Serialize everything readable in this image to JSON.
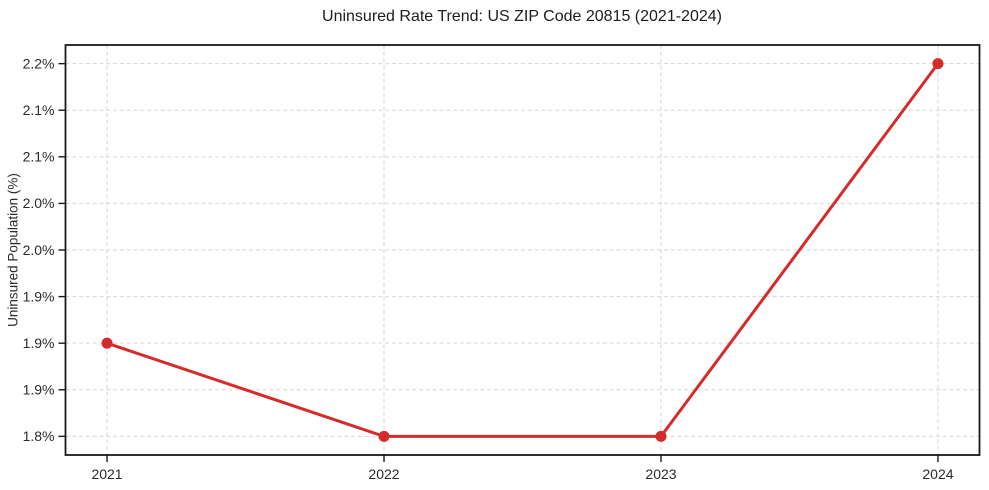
{
  "chart_data": {
    "type": "line",
    "title": "Uninsured Rate Trend: US ZIP Code 20815 (2021-2024)",
    "xlabel": "",
    "ylabel": "Uninsured Population (%)",
    "x": [
      2021,
      2022,
      2023,
      2024
    ],
    "values": [
      1.9,
      1.8,
      1.8,
      2.2
    ],
    "x_ticks": [
      {
        "value": 2021,
        "label": "2021"
      },
      {
        "value": 2022,
        "label": "2022"
      },
      {
        "value": 2023,
        "label": "2023"
      },
      {
        "value": 2024,
        "label": "2024"
      }
    ],
    "y_ticks": [
      {
        "value": 1.8,
        "label": "1.8%"
      },
      {
        "value": 1.85,
        "label": "1.9%"
      },
      {
        "value": 1.9,
        "label": "1.9%"
      },
      {
        "value": 1.95,
        "label": "1.9%"
      },
      {
        "value": 2.0,
        "label": "2.0%"
      },
      {
        "value": 2.05,
        "label": "2.0%"
      },
      {
        "value": 2.1,
        "label": "2.1%"
      },
      {
        "value": 2.15,
        "label": "2.1%"
      },
      {
        "value": 2.2,
        "label": "2.2%"
      }
    ],
    "xlim": [
      2020.85,
      2024.15
    ],
    "ylim": [
      1.78,
      2.22
    ],
    "grid": "dashed-both-axes",
    "legend": "none",
    "marker": "circle",
    "line_color": "#d62b2b",
    "grid_color": "#d6d6d6",
    "spine_color": "#1a1a1a",
    "text_color": "#2b2b2b"
  }
}
